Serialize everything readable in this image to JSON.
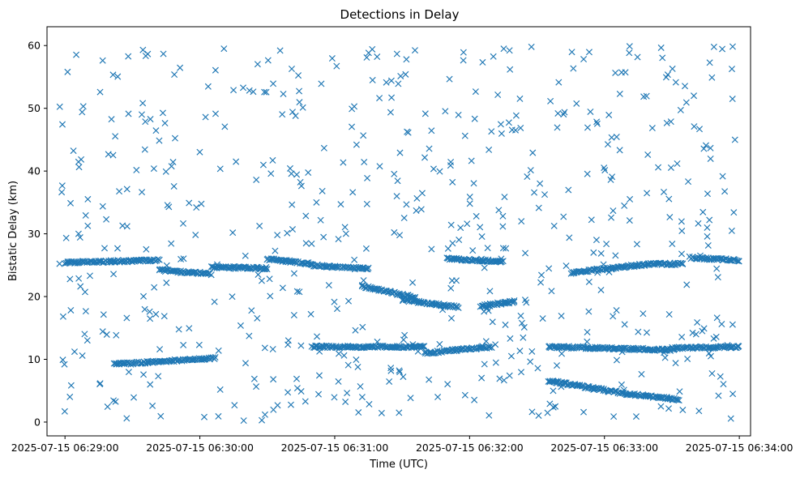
{
  "chart_data": {
    "type": "scatter",
    "title": "Detections in Delay",
    "xlabel": "Time (UTC)",
    "ylabel": "Bistatic Delay (km)",
    "marker": "x",
    "color": "#1f77b4",
    "grid": false,
    "xlim": [
      "2025-07-15 06:28:52",
      "2025-07-15 06:34:05"
    ],
    "ylim": [
      -2.2,
      63
    ],
    "x_ticks": [
      "2025-07-15 06:29:00",
      "2025-07-15 06:30:00",
      "2025-07-15 06:31:00",
      "2025-07-15 06:32:00",
      "2025-07-15 06:33:00",
      "2025-07-15 06:34:00"
    ],
    "y_ticks": [
      0,
      10,
      20,
      30,
      40,
      50,
      60
    ],
    "tracks": [
      {
        "start": "2025-07-15 06:29:22",
        "end": "2025-07-15 06:30:07",
        "delay_start": 9.2,
        "delay_end": 10.2
      },
      {
        "start": "2025-07-15 06:29:00",
        "end": "2025-07-15 06:29:42",
        "delay_start": 25.4,
        "delay_end": 25.8
      },
      {
        "start": "2025-07-15 06:29:42",
        "end": "2025-07-15 06:30:05",
        "delay_start": 24.2,
        "delay_end": 23.6
      },
      {
        "start": "2025-07-15 06:30:05",
        "end": "2025-07-15 06:30:30",
        "delay_start": 24.7,
        "delay_end": 24.5
      },
      {
        "start": "2025-07-15 06:30:30",
        "end": "2025-07-15 06:30:50",
        "delay_start": 26.0,
        "delay_end": 25.2
      },
      {
        "start": "2025-07-15 06:30:50",
        "end": "2025-07-15 06:31:15",
        "delay_start": 25.0,
        "delay_end": 24.4
      },
      {
        "start": "2025-07-15 06:30:50",
        "end": "2025-07-15 06:31:40",
        "delay_start": 12.0,
        "delay_end": 12.0
      },
      {
        "start": "2025-07-15 06:31:40",
        "end": "2025-07-15 06:32:10",
        "delay_start": 11.0,
        "delay_end": 12.0
      },
      {
        "start": "2025-07-15 06:32:35",
        "end": "2025-07-15 06:33:30",
        "delay_start": 12.0,
        "delay_end": 11.5
      },
      {
        "start": "2025-07-15 06:33:30",
        "end": "2025-07-15 06:34:00",
        "delay_start": 11.8,
        "delay_end": 12.0
      },
      {
        "start": "2025-07-15 06:31:50",
        "end": "2025-07-15 06:32:15",
        "delay_start": 26.0,
        "delay_end": 25.6
      },
      {
        "start": "2025-07-15 06:31:30",
        "end": "2025-07-15 06:31:55",
        "delay_start": 19.5,
        "delay_end": 18.3
      },
      {
        "start": "2025-07-15 06:31:12",
        "end": "2025-07-15 06:31:36",
        "delay_start": 21.7,
        "delay_end": 19.8
      },
      {
        "start": "2025-07-15 06:32:05",
        "end": "2025-07-15 06:32:20",
        "delay_start": 18.5,
        "delay_end": 19.2
      },
      {
        "start": "2025-07-15 06:32:35",
        "end": "2025-07-15 06:33:10",
        "delay_start": 6.6,
        "delay_end": 4.5
      },
      {
        "start": "2025-07-15 06:33:10",
        "end": "2025-07-15 06:33:33",
        "delay_start": 4.5,
        "delay_end": 3.6
      },
      {
        "start": "2025-07-15 06:32:45",
        "end": "2025-07-15 06:33:20",
        "delay_start": 23.8,
        "delay_end": 25.2
      },
      {
        "start": "2025-07-15 06:33:20",
        "end": "2025-07-15 06:33:35",
        "delay_start": 25.2,
        "delay_end": 25.2
      },
      {
        "start": "2025-07-15 06:33:38",
        "end": "2025-07-15 06:34:00",
        "delay_start": 26.2,
        "delay_end": 25.8
      }
    ],
    "scattered_points": 600,
    "scattered_delay_range": [
      0,
      60
    ]
  }
}
